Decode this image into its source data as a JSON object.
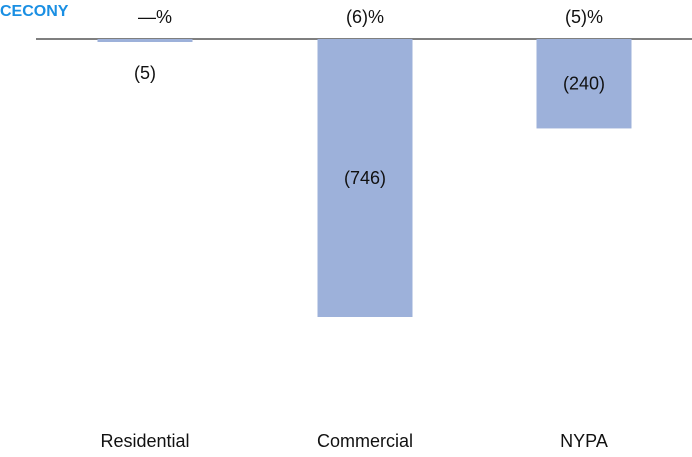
{
  "brand": {
    "label": "CECONY",
    "color": "#1a8fe3"
  },
  "chart_data": {
    "type": "bar",
    "categories": [
      "Residential",
      "Commercial",
      "NYPA"
    ],
    "values": [
      -5,
      -746,
      -240
    ],
    "value_labels": [
      "(5)",
      "(746)",
      "(240)"
    ],
    "percent_labels": [
      "—%",
      "(6)%",
      "(5)%"
    ],
    "title": "",
    "xlabel": "",
    "ylabel": "",
    "ylim": [
      -1000,
      0
    ],
    "grid": false,
    "bar_color": "#9db1da",
    "axis_color": "#555555"
  }
}
